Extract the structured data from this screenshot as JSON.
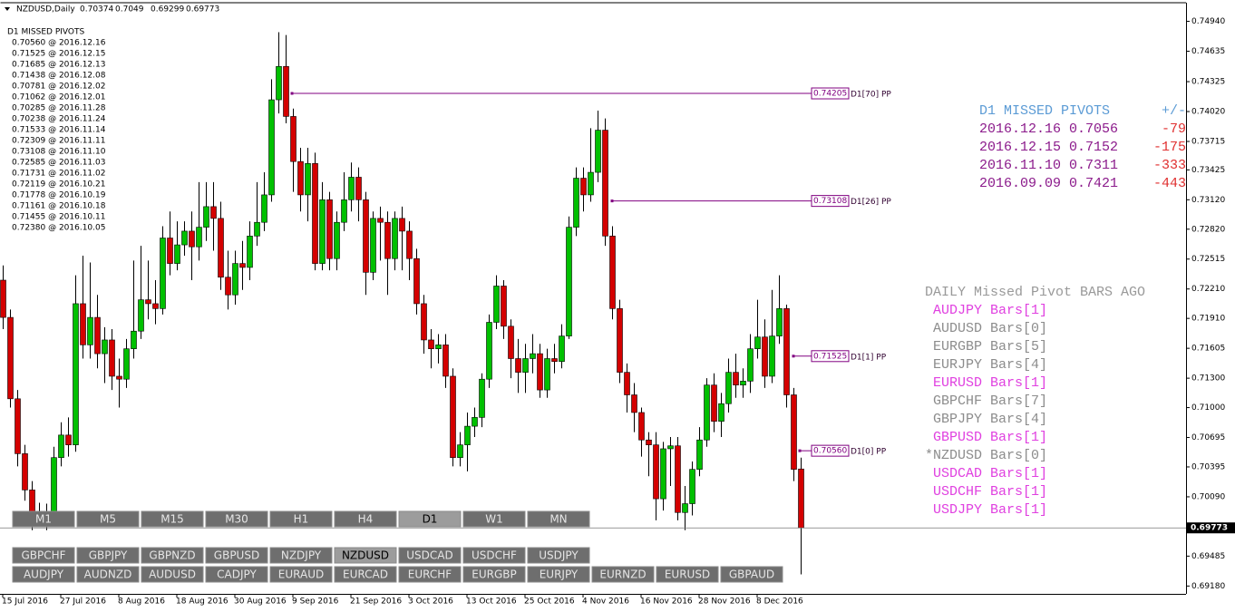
{
  "header": {
    "symbol": "NZDUSD,Daily"
  },
  "chart_data": {
    "type": "candlestick",
    "categories": [
      "15 Jul 2016",
      null,
      null,
      null,
      null,
      null,
      null,
      null,
      "27 Jul 2016",
      null,
      null,
      null,
      null,
      null,
      null,
      null,
      "8 Aug 2016",
      null,
      null,
      null,
      null,
      null,
      null,
      null,
      "18 Aug 2016",
      null,
      null,
      null,
      null,
      null,
      null,
      null,
      "30 Aug 2016",
      null,
      null,
      null,
      null,
      null,
      null,
      null,
      "9 Sep 2016",
      null,
      null,
      null,
      null,
      null,
      null,
      null,
      "21 Sep 2016",
      null,
      null,
      null,
      null,
      null,
      null,
      null,
      "3 Oct 2016",
      null,
      null,
      null,
      null,
      null,
      null,
      null,
      "13 Oct 2016",
      null,
      null,
      null,
      null,
      null,
      null,
      null,
      "25 Oct 2016",
      null,
      null,
      null,
      null,
      null,
      null,
      null,
      "4 Nov 2016",
      null,
      null,
      null,
      null,
      null,
      null,
      null,
      "16 Nov 2016",
      null,
      null,
      null,
      null,
      null,
      null,
      null,
      "28 Nov 2016",
      null,
      null,
      null,
      null,
      null,
      null,
      null,
      "8 Dec 2016",
      null,
      null,
      null,
      null,
      null,
      null
    ],
    "open": [
      0.723,
      0.7192,
      0.7109,
      0.7053,
      0.7016,
      0.6989,
      0.6993,
      0.699,
      0.7049,
      0.7072,
      0.7062,
      0.7206,
      0.7164,
      0.7192,
      0.7155,
      0.7169,
      0.7132,
      0.7129,
      0.716,
      0.7178,
      0.721,
      0.7206,
      0.7201,
      0.7273,
      0.7247,
      0.7266,
      0.728,
      0.7264,
      0.7284,
      0.7305,
      0.7293,
      0.7233,
      0.7215,
      0.7247,
      0.7243,
      0.7275,
      0.7289,
      0.7317,
      0.7414,
      0.7448,
      0.7397,
      0.7351,
      0.7317,
      0.7349,
      0.7247,
      0.7312,
      0.7252,
      0.7289,
      0.7312,
      0.7335,
      0.7312,
      0.7238,
      0.7293,
      0.7289,
      0.7252,
      0.7293,
      0.728,
      0.7252,
      0.7206,
      0.7169,
      0.716,
      0.7164,
      0.7132,
      0.7049,
      0.7062,
      0.7081,
      0.709,
      0.7129,
      0.7187,
      0.7224,
      0.7183,
      0.715,
      0.7136,
      0.715,
      0.7155,
      0.7118,
      0.715,
      0.7147,
      0.7173,
      0.7284,
      0.7334,
      0.7317,
      0.734,
      0.7383,
      0.7275,
      0.7201,
      0.7136,
      0.7113,
      0.7095,
      0.7067,
      0.7062,
      0.7007,
      0.7058,
      0.7061,
      0.6993,
      0.7002,
      0.7037,
      0.7067,
      0.7123,
      0.7086,
      0.7104,
      0.7136,
      0.7123,
      0.7127,
      0.716,
      0.7172,
      0.7132,
      0.7173,
      0.7201,
      0.7113,
      0.70374
    ],
    "high": [
      0.7245,
      0.72,
      0.7118,
      0.7062,
      0.7025,
      0.7003,
      0.7002,
      0.706,
      0.7085,
      0.709,
      0.7235,
      0.7255,
      0.7248,
      0.7215,
      0.7182,
      0.718,
      0.715,
      0.717,
      0.725,
      0.7265,
      0.725,
      0.723,
      0.7285,
      0.73,
      0.729,
      0.729,
      0.73,
      0.733,
      0.733,
      0.733,
      0.731,
      0.726,
      0.726,
      0.727,
      0.729,
      0.733,
      0.734,
      0.7435,
      0.7483,
      0.748,
      0.7405,
      0.7365,
      0.7365,
      0.736,
      0.733,
      0.732,
      0.73,
      0.734,
      0.735,
      0.7345,
      0.732,
      0.73,
      0.7305,
      0.73,
      0.73,
      0.7305,
      0.729,
      0.7262,
      0.7215,
      0.718,
      0.7175,
      0.7175,
      0.714,
      0.7075,
      0.7095,
      0.71,
      0.7135,
      0.7195,
      0.7235,
      0.723,
      0.719,
      0.717,
      0.7165,
      0.7175,
      0.7165,
      0.716,
      0.7165,
      0.7185,
      0.7295,
      0.7345,
      0.7345,
      0.7385,
      0.7403,
      0.7395,
      0.7285,
      0.721,
      0.7145,
      0.7125,
      0.71,
      0.7075,
      0.7075,
      0.7065,
      0.707,
      0.707,
      0.702,
      0.7045,
      0.708,
      0.713,
      0.7135,
      0.7115,
      0.715,
      0.7155,
      0.714,
      0.7175,
      0.721,
      0.719,
      0.722,
      0.7235,
      0.7205,
      0.712,
      0.7049
    ],
    "low": [
      0.718,
      0.71,
      0.704,
      0.7005,
      0.6975,
      0.6978,
      0.6975,
      0.6985,
      0.704,
      0.705,
      0.7055,
      0.715,
      0.715,
      0.714,
      0.7125,
      0.7118,
      0.71,
      0.712,
      0.715,
      0.717,
      0.719,
      0.7185,
      0.7195,
      0.7235,
      0.724,
      0.7255,
      0.723,
      0.725,
      0.727,
      0.726,
      0.722,
      0.72,
      0.7205,
      0.722,
      0.723,
      0.7265,
      0.728,
      0.731,
      0.74,
      0.739,
      0.732,
      0.73,
      0.729,
      0.724,
      0.724,
      0.724,
      0.724,
      0.728,
      0.73,
      0.729,
      0.7215,
      0.723,
      0.725,
      0.7215,
      0.724,
      0.724,
      0.723,
      0.7195,
      0.7155,
      0.714,
      0.7145,
      0.712,
      0.704,
      0.704,
      0.7035,
      0.707,
      0.708,
      0.712,
      0.718,
      0.717,
      0.713,
      0.7115,
      0.7115,
      0.7135,
      0.711,
      0.711,
      0.7135,
      0.714,
      0.717,
      0.7275,
      0.73,
      0.731,
      0.733,
      0.7265,
      0.719,
      0.7125,
      0.7095,
      0.7075,
      0.705,
      0.703,
      0.6985,
      0.6995,
      0.702,
      0.6985,
      0.6975,
      0.699,
      0.703,
      0.706,
      0.7075,
      0.707,
      0.7095,
      0.711,
      0.711,
      0.7115,
      0.715,
      0.712,
      0.7125,
      0.7165,
      0.71,
      0.7025,
      0.69299
    ],
    "close": [
      0.7192,
      0.7109,
      0.7053,
      0.7016,
      0.6989,
      0.6993,
      0.699,
      0.7049,
      0.7072,
      0.7062,
      0.7206,
      0.7164,
      0.7192,
      0.7155,
      0.7169,
      0.7132,
      0.7129,
      0.716,
      0.7178,
      0.721,
      0.7206,
      0.7201,
      0.7273,
      0.7247,
      0.7266,
      0.728,
      0.7264,
      0.7284,
      0.7305,
      0.7293,
      0.7233,
      0.7215,
      0.7247,
      0.7243,
      0.7275,
      0.7289,
      0.7317,
      0.7414,
      0.7448,
      0.7397,
      0.7351,
      0.7317,
      0.7349,
      0.7247,
      0.7312,
      0.7252,
      0.7289,
      0.7312,
      0.7335,
      0.7312,
      0.7238,
      0.7293,
      0.7289,
      0.7252,
      0.7293,
      0.728,
      0.7252,
      0.7206,
      0.7169,
      0.716,
      0.7164,
      0.7132,
      0.7049,
      0.7062,
      0.7081,
      0.709,
      0.7129,
      0.7187,
      0.7224,
      0.7183,
      0.715,
      0.7136,
      0.715,
      0.7155,
      0.7118,
      0.715,
      0.7147,
      0.7173,
      0.7284,
      0.7334,
      0.7317,
      0.734,
      0.7383,
      0.7275,
      0.7201,
      0.7136,
      0.7113,
      0.7095,
      0.7067,
      0.7062,
      0.7007,
      0.7058,
      0.7061,
      0.6993,
      0.7002,
      0.7037,
      0.7067,
      0.7123,
      0.7086,
      0.7104,
      0.7136,
      0.7123,
      0.7127,
      0.716,
      0.7172,
      0.7132,
      0.7173,
      0.7201,
      0.7113,
      0.7037,
      0.69773
    ],
    "up_color": "#00c000",
    "down_color": "#d40000",
    "ylim": [
      0.691,
      0.7513
    ],
    "yticks": [
      {
        "value": 0.7494,
        "label": "0.74940"
      },
      0.74635,
      0.74325,
      {
        "value": 0.7402,
        "label": "0.74020"
      },
      0.73715,
      0.73425,
      {
        "value": 0.7312,
        "label": "0.73120"
      },
      {
        "value": 0.7282,
        "label": "0.72820"
      },
      0.72515,
      {
        "value": 0.7221,
        "label": "0.72210"
      },
      {
        "value": 0.7191,
        "label": "0.71910"
      },
      0.71605,
      {
        "value": 0.713,
        "label": "0.71300"
      },
      {
        "value": 0.71,
        "label": "0.71000"
      },
      0.70695,
      0.70395,
      {
        "value": 0.7009,
        "label": "0.70090"
      },
      0.69485,
      {
        "value": 0.6918,
        "label": "0.69180"
      }
    ],
    "pivot_lines": [
      {
        "value": 0.74205,
        "tag": "D1[70] PP"
      },
      {
        "value": 0.73108,
        "tag": "D1[26] PP"
      },
      {
        "value": 0.71525,
        "tag": "D1[1] PP"
      },
      {
        "value": {
          "value": 0.7056,
          "label": "0.70560"
        },
        "tag": "D1[0] PP"
      }
    ],
    "pivot_color": "#800080"
  },
  "missed_pivots_list": {
    "title": "D1 MISSED PIVOTS",
    "rows": [
      "0.70560 @ 2016.12.16",
      "0.71525 @ 2016.12.15",
      "0.71685 @ 2016.12.13",
      "0.71438 @ 2016.12.08",
      "0.70781 @ 2016.12.02",
      "0.71062 @ 2016.12.01",
      "0.70285 @ 2016.11.28",
      "0.70238 @ 2016.11.24",
      "0.71533 @ 2016.11.14",
      "0.72309 @ 2016.11.11",
      "0.73108 @ 2016.11.10",
      "0.72585 @ 2016.11.03",
      "0.71731 @ 2016.11.02",
      "0.72119 @ 2016.10.21",
      "0.71778 @ 2016.10.19",
      "0.71161 @ 2016.10.18",
      "0.71455 @ 2016.10.11",
      "0.72380 @ 2016.10.05"
    ]
  },
  "missed_pivots_panel": {
    "title": "D1 MISSED PIVOTS",
    "diff_header": "+/-",
    "rows": [
      [
        "2016.12.16 0.7056",
        "-79"
      ],
      [
        "2016.12.15 0.7152",
        "-175"
      ],
      [
        "2016.11.10 0.7311",
        "-333"
      ],
      [
        "2016.09.09 0.7421",
        "-443"
      ]
    ]
  },
  "bars_ago_panel": {
    "title": "DAILY Missed Pivot BARS AGO",
    "rows": [
      {
        "text": "AUDJPY Bars[1]",
        "color": "#e040e0"
      },
      {
        "text": "AUDUSD Bars[0]",
        "color": "#8c8c8c"
      },
      {
        "text": "EURGBP Bars[5]",
        "color": "#8c8c8c"
      },
      {
        "text": "EURJPY Bars[4]",
        "color": "#8c8c8c"
      },
      {
        "text": "EURUSD Bars[1]",
        "color": "#e040e0"
      },
      {
        "text": "GBPCHF Bars[7]",
        "color": "#8c8c8c"
      },
      {
        "text": "GBPJPY Bars[4]",
        "color": "#8c8c8c"
      },
      {
        "text": "GBPUSD Bars[1]",
        "color": "#e040e0"
      },
      {
        "text": "*NZDUSD Bars[0]",
        "color": "#8c8c8c"
      },
      {
        "text": "USDCAD Bars[1]",
        "color": "#e040e0"
      },
      {
        "text": "USDCHF Bars[1]",
        "color": "#e040e0"
      },
      {
        "text": "USDJPY Bars[1]",
        "color": "#e040e0"
      }
    ]
  },
  "timeframes": {
    "buttons": [
      "M1",
      "M5",
      "M15",
      "M30",
      "H1",
      "H4",
      "D1",
      "W1",
      "MN"
    ],
    "active": 6
  },
  "symbols": {
    "rows": [
      [
        "GBPCHF",
        "GBPJPY",
        "GBPNZD",
        "GBPUSD",
        "NZDJPY",
        "NZDUSD",
        "USDCAD",
        "USDCHF",
        "USDJPY"
      ],
      [
        "AUDJPY",
        "AUDNZD",
        "AUDUSD",
        "CADJPY",
        "EURAUD",
        "EURCAD",
        "EURCHF",
        "EURGBP",
        "EURJPY",
        "EURNZD",
        "EURUSD",
        "GBPAUD"
      ]
    ],
    "active": [
      0,
      5
    ]
  }
}
